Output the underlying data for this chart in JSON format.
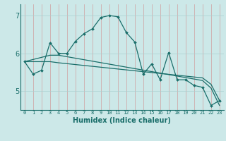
{
  "xlabel": "Humidex (Indice chaleur)",
  "xlim": [
    -0.5,
    23.5
  ],
  "ylim": [
    4.5,
    7.3
  ],
  "yticks": [
    5,
    6,
    7
  ],
  "xticks": [
    0,
    1,
    2,
    3,
    4,
    5,
    6,
    7,
    8,
    9,
    10,
    11,
    12,
    13,
    14,
    15,
    16,
    17,
    18,
    19,
    20,
    21,
    22,
    23
  ],
  "background_color": "#cce8e8",
  "grid_color": "#aad0d0",
  "line_color": "#1a6e6a",
  "series1_x": [
    0,
    1,
    2,
    3,
    4,
    5,
    6,
    7,
    8,
    9,
    10,
    11,
    12,
    13,
    14,
    15,
    16,
    17,
    18,
    19,
    20,
    21,
    22,
    23
  ],
  "series1_y": [
    5.78,
    5.45,
    5.55,
    6.28,
    6.0,
    6.0,
    6.32,
    6.52,
    6.65,
    6.95,
    7.0,
    6.97,
    6.55,
    6.3,
    5.45,
    5.72,
    5.3,
    6.02,
    5.3,
    5.3,
    5.15,
    5.1,
    4.62,
    4.75
  ],
  "series2_x": [
    0,
    3,
    4,
    21,
    22,
    23
  ],
  "series2_y": [
    5.78,
    5.95,
    5.95,
    5.28,
    5.08,
    4.62
  ],
  "series3_x": [
    0,
    3,
    4,
    21,
    22,
    23
  ],
  "series3_y": [
    5.78,
    5.78,
    5.75,
    5.35,
    5.18,
    4.75
  ]
}
